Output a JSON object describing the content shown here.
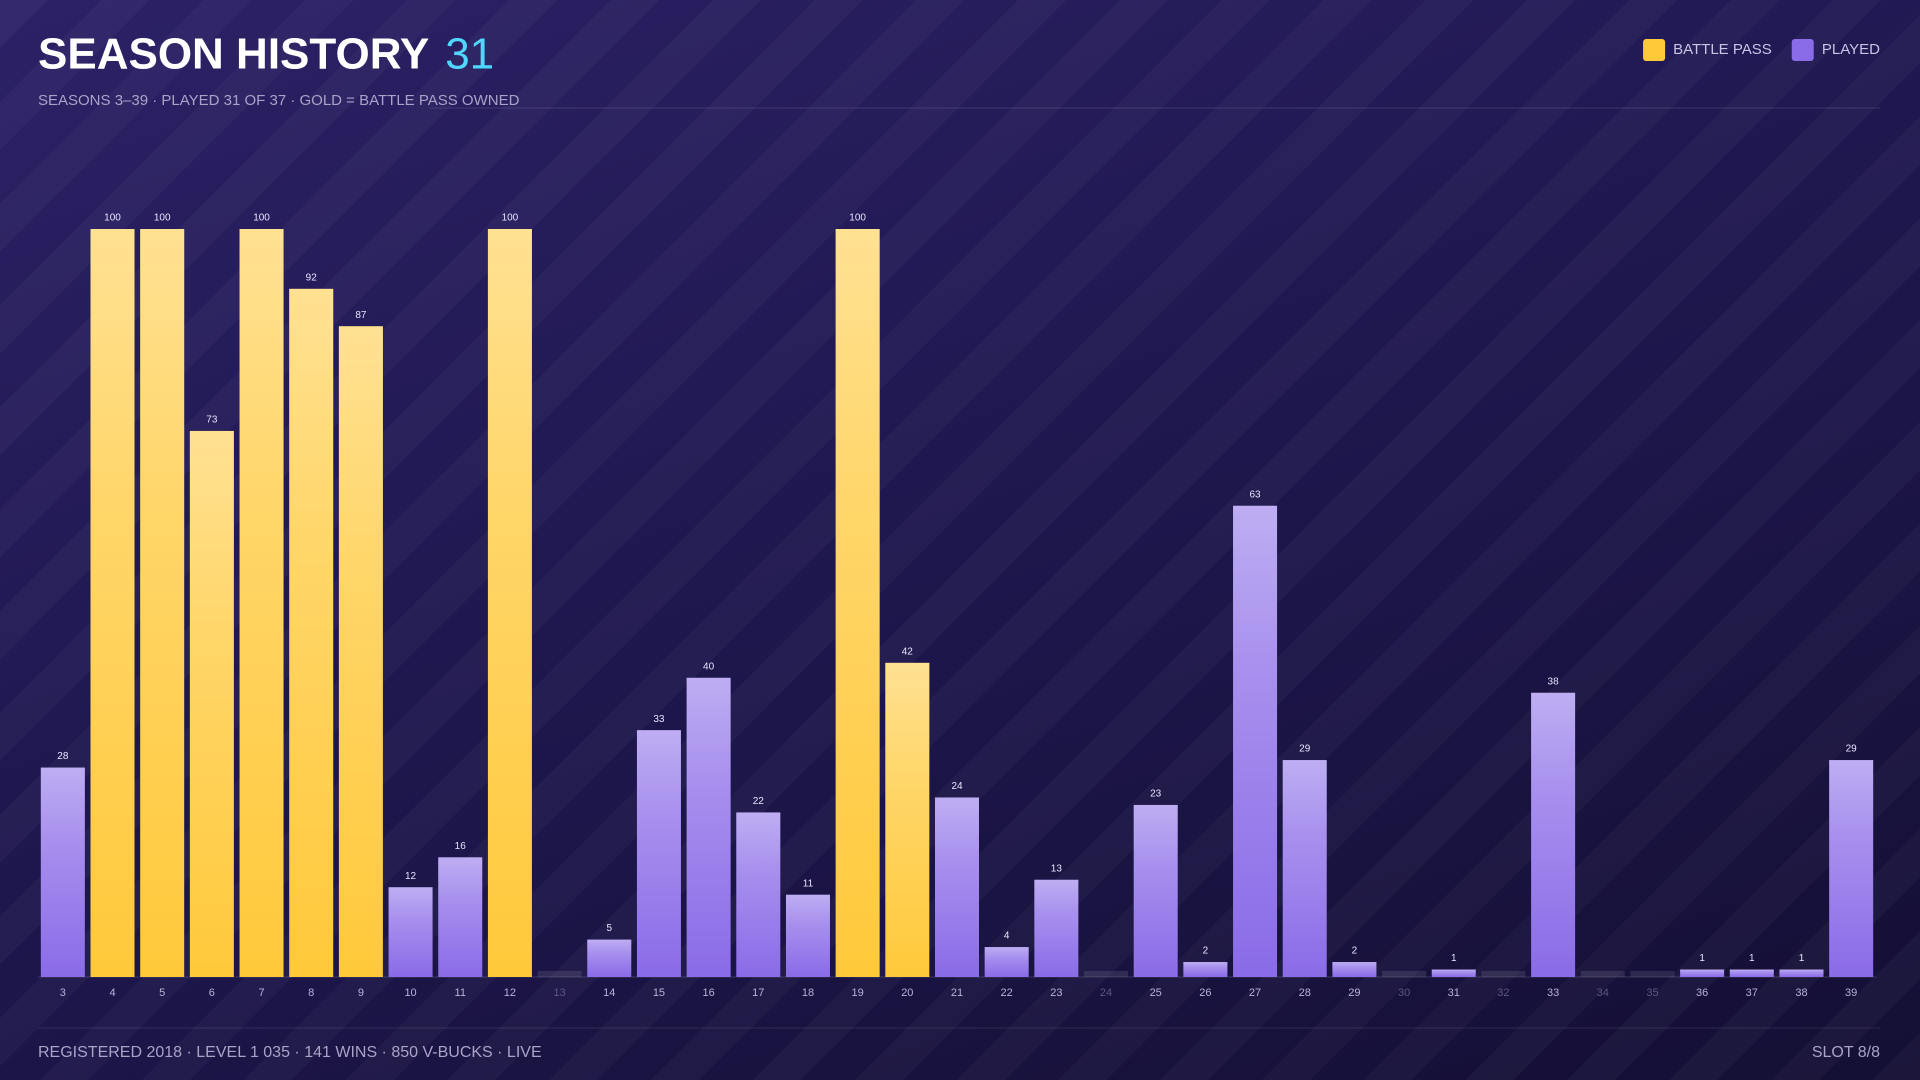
{
  "chart_data": {
    "type": "bar",
    "title": "SEASON HISTORY",
    "title_count": "31",
    "subtitle": "SEASONS 3–39 · PLAYED 31 OF 37 · GOLD = BATTLE PASS OWNED",
    "footer": "REGISTERED 2018 · LEVEL 1 035 · 141 WINS · 850 V-BUCKS · LIVE",
    "footer_right": "SLOT 8/8",
    "categories": [
      "3",
      "4",
      "5",
      "6",
      "7",
      "8",
      "9",
      "10",
      "11",
      "12",
      "13",
      "14",
      "15",
      "16",
      "17",
      "18",
      "19",
      "20",
      "21",
      "22",
      "23",
      "24",
      "25",
      "26",
      "27",
      "28",
      "29",
      "30",
      "31",
      "32",
      "33",
      "34",
      "35",
      "36",
      "37",
      "38",
      "39"
    ],
    "series": [
      {
        "name": "BATTLE PASS",
        "color": "#ffc93a",
        "values": [
          null,
          100,
          100,
          73,
          100,
          92,
          87,
          null,
          null,
          100,
          null,
          null,
          null,
          null,
          null,
          null,
          100,
          42,
          null,
          null,
          null,
          null,
          null,
          null,
          null,
          null,
          null,
          null,
          null,
          null,
          null,
          null,
          null,
          null,
          null,
          null,
          null
        ]
      },
      {
        "name": "PLAYED",
        "color": "#8a6be8",
        "values": [
          28,
          null,
          null,
          null,
          null,
          null,
          null,
          12,
          16,
          null,
          null,
          5,
          33,
          40,
          22,
          11,
          null,
          null,
          24,
          4,
          13,
          null,
          23,
          2,
          63,
          29,
          2,
          null,
          1,
          null,
          38,
          null,
          null,
          1,
          1,
          1,
          29
        ]
      }
    ],
    "ylim": [
      0,
      100
    ],
    "legend": "top-right"
  }
}
